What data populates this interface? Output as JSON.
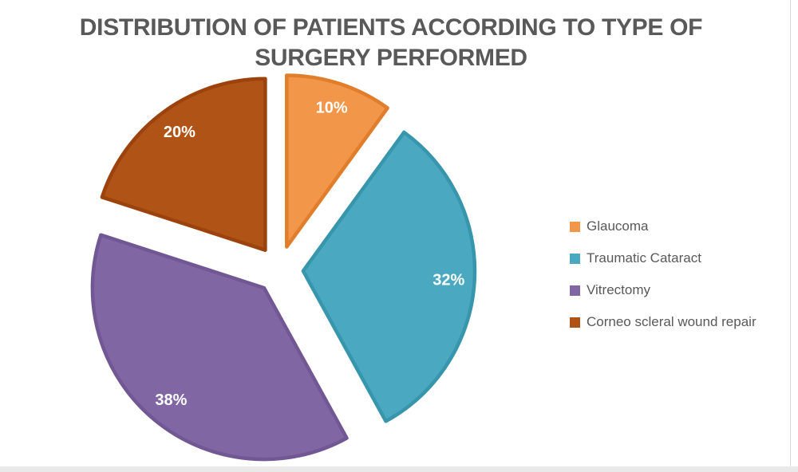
{
  "figure": {
    "background": "#FFFFFF",
    "title_color": "#595959",
    "legend_text_color": "#595959",
    "data_label_color": "#FFFFFF",
    "bottom_bar_color": "#E9E9E9",
    "right_border_color": "#DBDBDB"
  },
  "chart_data": {
    "type": "pie",
    "title": "DISTRIBUTION OF PATIENTS ACCORDING TO TYPE OF SURGERY PERFORMED",
    "unit": "percent",
    "start_angle_deg": 0,
    "direction": "clockwise",
    "exploded": true,
    "legend_position": "right",
    "data_labels": "percent-inside-slice",
    "slices": [
      {
        "label": "Glaucoma",
        "value": 10,
        "data_label": "10%",
        "fill": "#F2964A",
        "stroke": "#E07E2C"
      },
      {
        "label": "Traumatic Cataract",
        "value": 32,
        "data_label": "32%",
        "fill": "#4AA9C0",
        "stroke": "#3795AC"
      },
      {
        "label": "Vitrectomy",
        "value": 38,
        "data_label": "38%",
        "fill": "#8067A4",
        "stroke": "#715793"
      },
      {
        "label": "Corneo scleral wound repair",
        "value": 20,
        "data_label": "20%",
        "fill": "#B05316",
        "stroke": "#9C420C"
      }
    ]
  }
}
